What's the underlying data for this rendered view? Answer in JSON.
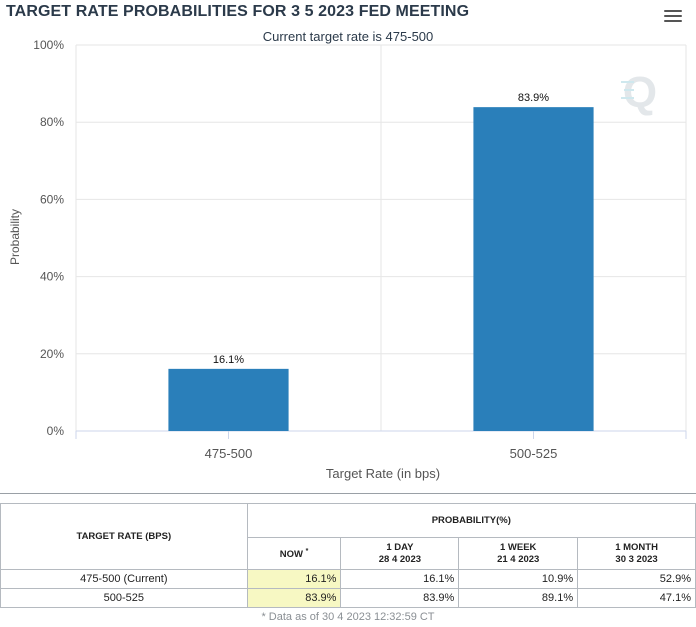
{
  "header": {
    "title": "TARGET RATE PROBABILITIES FOR 3 5 2023 FED MEETING",
    "subtitle": "Current target rate is 475-500"
  },
  "colors": {
    "bar": "#2a7fba",
    "grid": "#e6e6e6",
    "now_cell": "#f7f8c3"
  },
  "chart_data": {
    "type": "bar",
    "title": "TARGET RATE PROBABILITIES FOR 3 5 2023 FED MEETING",
    "subtitle": "Current target rate is 475-500",
    "categories": [
      "475-500",
      "500-525"
    ],
    "values": [
      16.1,
      83.9
    ],
    "data_labels": [
      "16.1%",
      "83.9%"
    ],
    "xlabel": "Target Rate (in bps)",
    "ylabel": "Probability",
    "ylim": [
      0,
      100
    ],
    "yticks": [
      0,
      20,
      40,
      60,
      80,
      100
    ],
    "ytick_labels": [
      "0%",
      "20%",
      "40%",
      "60%",
      "80%",
      "100%"
    ],
    "grid": true
  },
  "table": {
    "rate_header": "TARGET RATE (BPS)",
    "prob_header": "PROBABILITY(%)",
    "columns": [
      {
        "line1": "NOW",
        "mark": "*",
        "line2": ""
      },
      {
        "line1": "1 DAY",
        "line2": "28 4 2023"
      },
      {
        "line1": "1 WEEK",
        "line2": "21 4 2023"
      },
      {
        "line1": "1 MONTH",
        "line2": "30 3 2023"
      }
    ],
    "rows": [
      {
        "rate": "475-500 (Current)",
        "now": "16.1%",
        "day": "16.1%",
        "week": "10.9%",
        "month": "52.9%"
      },
      {
        "rate": "500-525",
        "now": "83.9%",
        "day": "83.9%",
        "week": "89.1%",
        "month": "47.1%"
      }
    ],
    "footnote": "* Data as of 30 4 2023 12:32:59 CT"
  }
}
